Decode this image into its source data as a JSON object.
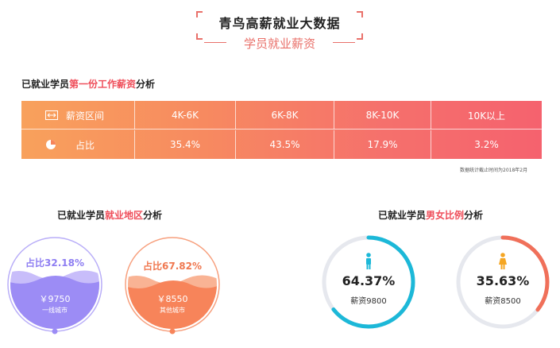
{
  "header": {
    "title": "青鸟高薪就业大数据",
    "subtitle": "学员就业薪资"
  },
  "salary_section": {
    "title_prefix": "已就业学员",
    "title_highlight": "第一份工作薪资",
    "title_suffix": "分析",
    "range_label": "薪资区间",
    "share_label": "占比",
    "note": "数据统计截止时间为2018年2月"
  },
  "region_section": {
    "title_prefix": "已就业学员",
    "title_highlight": "就业地区",
    "title_suffix": "分析",
    "tier1": {
      "share": "占比32.18%",
      "salary": "￥9750",
      "label": "一线城市",
      "color": "#9c8cf5"
    },
    "other": {
      "share": "占比67.82%",
      "salary": "￥8550",
      "label": "其他城市",
      "color": "#f7845a"
    }
  },
  "gender_section": {
    "title_prefix": "已就业学员",
    "title_highlight": "男女比例",
    "title_suffix": "分析",
    "male": {
      "percent": "64.37%",
      "salary": "薪资9800",
      "color": "#1cb8d8"
    },
    "female": {
      "percent": "35.63%",
      "salary": "薪资8500",
      "color": "#f0705a"
    }
  },
  "chart_data": [
    {
      "type": "table",
      "title": "已就业学员第一份工作薪资分析",
      "columns": [
        "薪资区间",
        "4K-6K",
        "6K-8K",
        "8K-10K",
        "10K以上"
      ],
      "rows": [
        [
          "占比",
          "35.4%",
          "43.5%",
          "17.9%",
          "3.2%"
        ]
      ],
      "categories": [
        "4K-6K",
        "6K-8K",
        "8K-10K",
        "10K以上"
      ],
      "values": [
        35.4,
        43.5,
        17.9,
        3.2
      ]
    },
    {
      "type": "pie",
      "title": "已就业学员就业地区分析",
      "categories": [
        "一线城市",
        "其他城市"
      ],
      "values": [
        32.18,
        67.82
      ],
      "salaries": [
        "￥9750",
        "￥8550"
      ]
    },
    {
      "type": "pie",
      "title": "已就业学员男女比例分析",
      "categories": [
        "male",
        "female"
      ],
      "values": [
        64.37,
        35.63
      ],
      "salaries": [
        "薪资9800",
        "薪资8500"
      ]
    }
  ]
}
